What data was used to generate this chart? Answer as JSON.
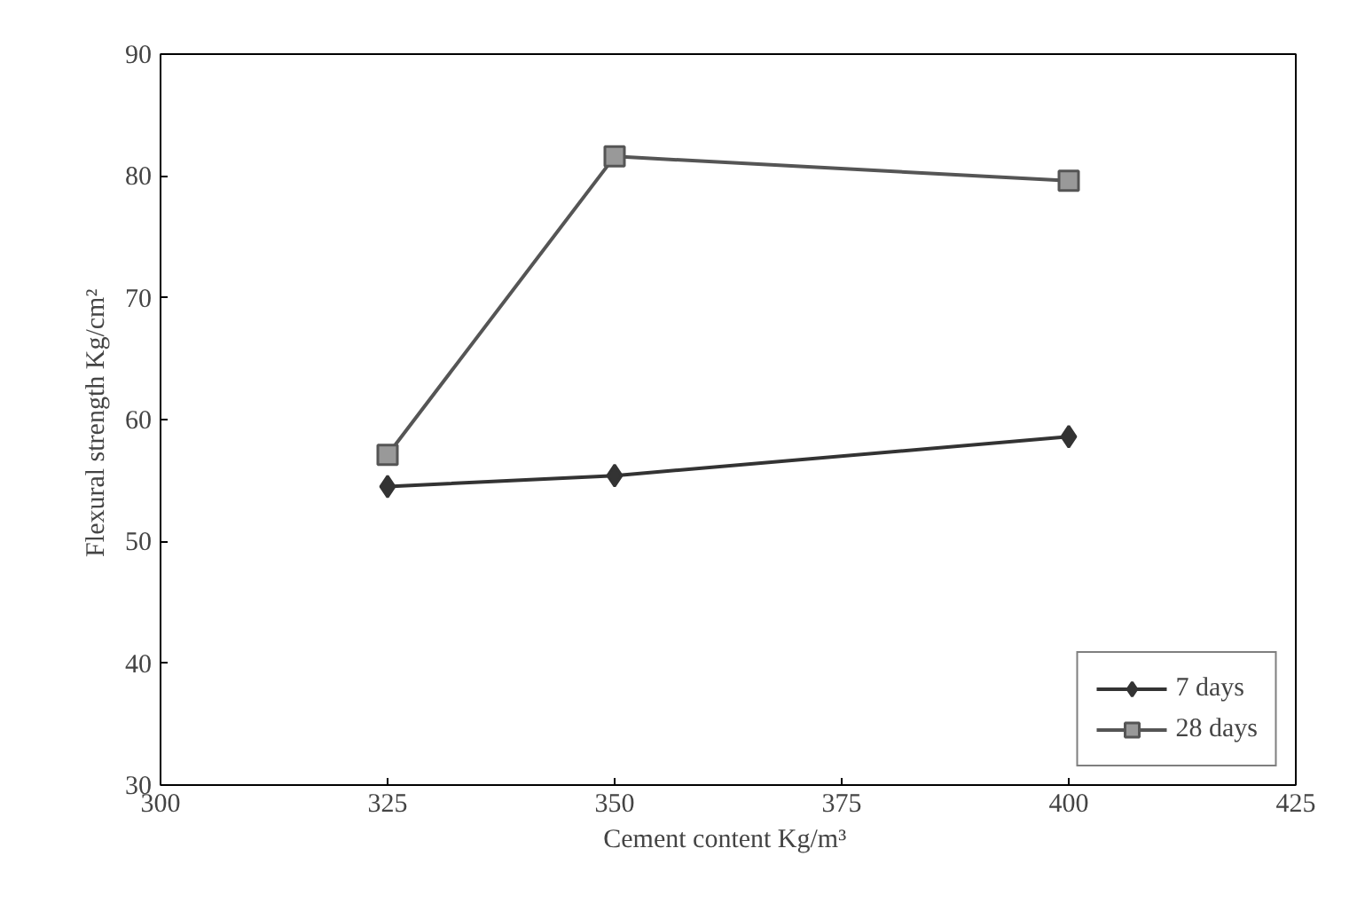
{
  "chart_data": {
    "type": "line",
    "xlabel": "Cement content  Kg/m³",
    "ylabel": "Flexural strength  Kg/cm²",
    "x": [
      325,
      350,
      400
    ],
    "series": [
      {
        "name": "7 days",
        "color": "#333333",
        "marker": "diamond",
        "values": [
          54.5,
          55.4,
          58.6
        ]
      },
      {
        "name": "28 days",
        "color": "#555555",
        "marker": "square",
        "values": [
          57.1,
          81.6,
          79.6
        ]
      }
    ],
    "xlim": [
      300,
      425
    ],
    "xticks": [
      300,
      325,
      350,
      375,
      400,
      425
    ],
    "ylim": [
      30,
      90
    ],
    "yticks": [
      30,
      40,
      50,
      60,
      70,
      80,
      90
    ],
    "grid": false,
    "legend": "bottom right",
    "line_style": "solid"
  }
}
